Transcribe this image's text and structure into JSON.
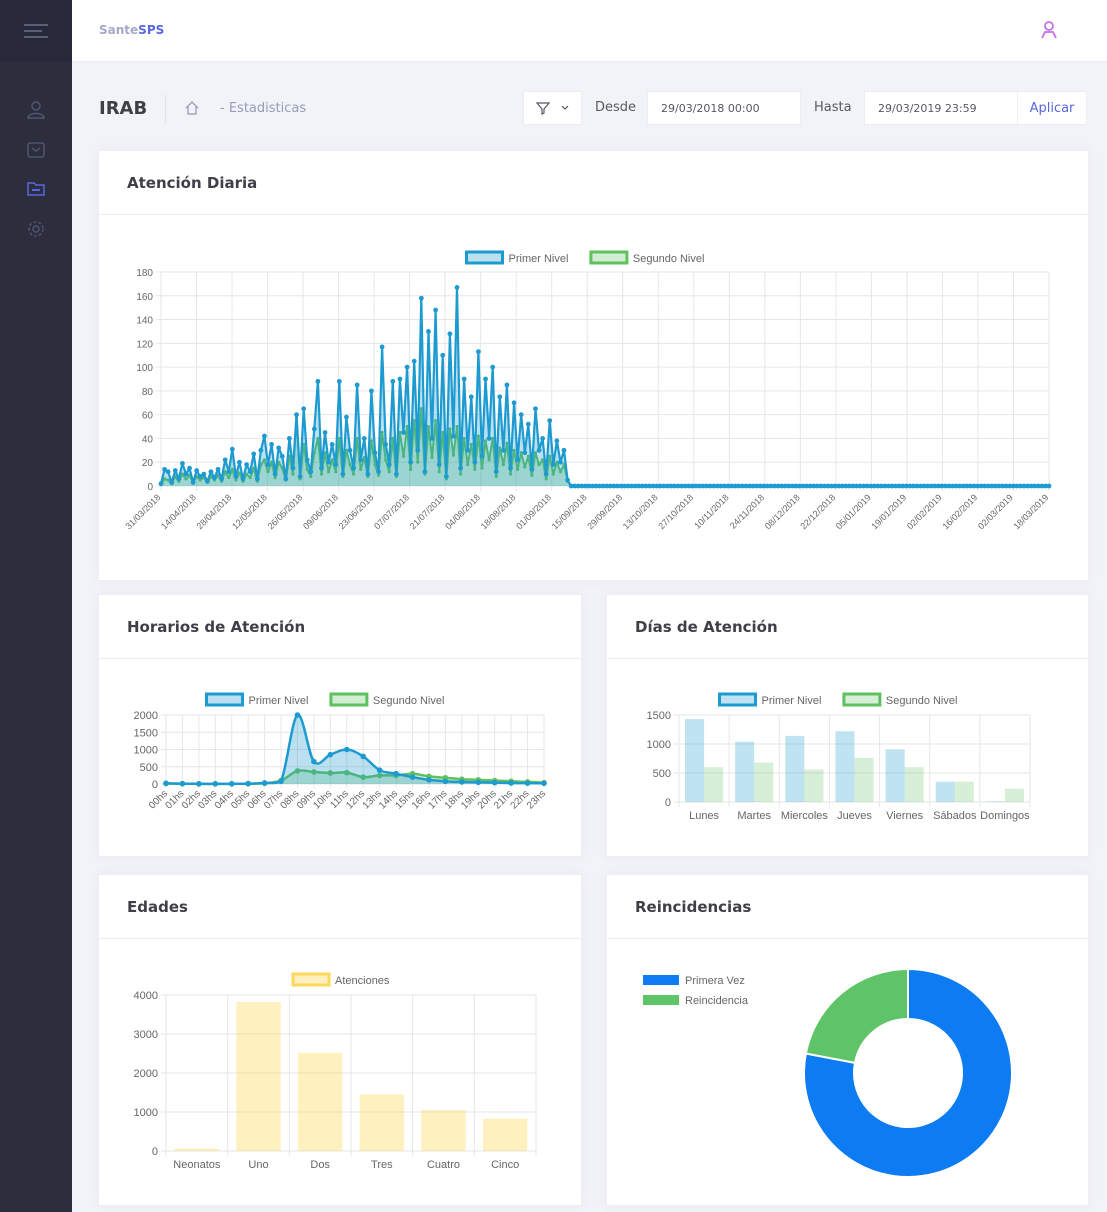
{
  "brand": {
    "part1": "Sante",
    "part2": "SPS"
  },
  "sidebar": {
    "items": [
      {
        "icon": "users-icon"
      },
      {
        "icon": "inbox-icon"
      },
      {
        "icon": "folder-icon"
      },
      {
        "icon": "gear-icon"
      }
    ]
  },
  "subheader": {
    "title": "IRAB",
    "breadcrumb_separator": "-",
    "breadcrumb": "Estadisticas",
    "desde_label": "Desde",
    "desde_value": "29/03/2018 00:00",
    "hasta_label": "Hasta",
    "hasta_value": "29/03/2019 23:59",
    "apply_label": "Aplicar"
  },
  "colors": {
    "primer": "#1d9bd1",
    "primer_fill": "rgba(29,155,209,0.30)",
    "segundo": "#5fc05f",
    "segundo_fill": "rgba(95,192,95,0.28)",
    "atenciones": "#ffd75a",
    "donut_blue": "#0d7cf2",
    "donut_green": "#5fc467"
  },
  "cards": {
    "diaria": "Atención Diaria",
    "horarios": "Horarios de Atención",
    "dias": "Días de Atención",
    "edades": "Edades",
    "reincidencias": "Reincidencias"
  },
  "chart_data": [
    {
      "id": "diaria",
      "type": "line",
      "title": "Atención Diaria",
      "ylim": [
        0,
        180
      ],
      "yticks": [
        0,
        20,
        40,
        60,
        80,
        100,
        120,
        140,
        160,
        180
      ],
      "x_tick_labels": [
        "31/03/2018",
        "14/04/2018",
        "28/04/2018",
        "12/05/2018",
        "26/05/2018",
        "09/06/2018",
        "23/06/2018",
        "07/07/2018",
        "21/07/2018",
        "04/08/2018",
        "18/08/2018",
        "01/09/2018",
        "15/09/2018",
        "29/09/2018",
        "13/10/2018",
        "27/10/2018",
        "10/11/2018",
        "24/11/2018",
        "08/12/2018",
        "22/12/2018",
        "05/01/2019",
        "19/01/2019",
        "02/02/2019",
        "16/02/2019",
        "02/03/2019",
        "18/03/2019"
      ],
      "legend": "top",
      "series": [
        {
          "name": "Primer Nivel",
          "values": [
            2,
            14,
            12,
            3,
            13,
            6,
            19,
            10,
            15,
            3,
            13,
            8,
            10,
            4,
            12,
            7,
            14,
            6,
            22,
            12,
            31,
            8,
            20,
            6,
            18,
            12,
            27,
            6,
            30,
            42,
            18,
            35,
            10,
            32,
            25,
            6,
            40,
            15,
            60,
            8,
            65,
            22,
            12,
            48,
            88,
            15,
            45,
            20,
            35,
            18,
            88,
            10,
            58,
            30,
            15,
            85,
            22,
            40,
            10,
            80,
            28,
            12,
            117,
            35,
            18,
            88,
            10,
            90,
            45,
            100,
            20,
            105,
            30,
            158,
            12,
            130,
            40,
            148,
            18,
            110,
            8,
            128,
            42,
            167,
            15,
            90,
            30,
            75,
            20,
            113,
            25,
            90,
            40,
            100,
            12,
            75,
            30,
            85,
            15,
            70,
            22,
            60,
            28,
            52,
            14,
            65,
            30,
            40,
            10,
            55,
            18,
            38,
            20,
            30,
            5,
            0,
            0,
            0,
            0,
            0,
            0,
            0,
            0,
            0,
            0,
            0,
            0,
            0,
            0,
            0,
            0,
            0,
            0,
            0,
            0,
            0,
            0,
            0,
            0,
            0,
            0,
            0,
            0,
            0,
            0,
            0,
            0,
            0,
            0,
            0,
            0,
            0,
            0,
            0,
            0,
            0,
            0,
            0,
            0,
            0,
            0,
            0,
            0,
            0,
            0,
            0,
            0,
            0,
            0,
            0,
            0,
            0,
            0,
            0,
            0,
            0,
            0,
            0,
            0,
            0,
            0,
            0,
            0,
            0,
            0,
            0,
            0,
            0,
            0,
            0,
            0,
            0,
            0,
            0,
            0,
            0,
            0,
            0,
            0,
            0,
            0,
            0,
            0,
            0,
            0,
            0,
            0,
            0,
            0,
            0,
            0,
            0,
            0,
            0,
            0,
            0,
            0,
            0,
            0,
            0,
            0,
            0,
            0,
            0,
            0,
            0,
            0,
            0,
            0,
            0,
            0,
            0,
            0,
            0,
            0,
            0,
            0,
            0,
            0,
            0,
            0,
            0,
            0,
            0,
            0,
            0,
            0,
            0,
            0,
            0
          ]
        },
        {
          "name": "Segundo Nivel",
          "values": [
            1,
            6,
            5,
            2,
            8,
            4,
            10,
            6,
            9,
            3,
            8,
            5,
            7,
            3,
            8,
            5,
            9,
            4,
            12,
            7,
            14,
            5,
            11,
            4,
            10,
            7,
            15,
            4,
            18,
            22,
            12,
            20,
            7,
            20,
            15,
            5,
            25,
            10,
            58,
            6,
            35,
            14,
            8,
            28,
            40,
            10,
            28,
            12,
            22,
            12,
            40,
            8,
            30,
            18,
            10,
            40,
            14,
            24,
            8,
            38,
            18,
            9,
            45,
            22,
            12,
            40,
            8,
            45,
            25,
            50,
            14,
            55,
            20,
            65,
            10,
            50,
            24,
            55,
            12,
            45,
            6,
            48,
            26,
            50,
            10,
            40,
            18,
            35,
            14,
            42,
            15,
            38,
            22,
            40,
            8,
            32,
            18,
            36,
            10,
            30,
            14,
            28,
            16,
            25,
            9,
            28,
            18,
            22,
            6,
            25,
            10,
            20,
            12,
            18,
            4,
            0,
            0,
            0,
            0,
            0,
            0,
            0,
            0,
            0,
            0,
            0,
            0,
            0,
            0,
            0,
            0,
            0,
            0,
            0,
            0,
            0,
            0,
            0,
            0,
            0,
            0,
            0,
            0,
            0,
            0,
            0,
            0,
            0,
            0,
            0,
            0,
            0,
            0,
            0,
            0,
            0,
            0,
            0,
            0,
            0,
            0,
            0,
            0,
            0,
            0,
            0,
            0,
            0,
            0,
            0,
            0,
            0,
            0,
            0,
            0,
            0,
            0,
            0,
            0,
            0,
            0,
            0,
            0,
            0,
            0,
            0,
            0,
            0,
            0,
            0,
            0,
            0,
            0,
            0,
            0,
            0,
            0,
            0,
            0,
            0,
            0,
            0,
            0,
            0,
            0,
            0,
            0,
            0,
            0,
            0,
            0,
            0,
            0,
            0,
            0,
            0,
            0,
            0,
            0,
            0,
            0,
            0,
            0,
            0,
            0,
            0,
            0,
            0,
            0,
            0,
            0,
            0,
            0,
            0,
            0,
            0,
            0,
            0,
            0,
            0,
            0,
            0,
            0,
            0,
            0,
            0,
            0,
            0,
            0,
            0
          ]
        }
      ]
    },
    {
      "id": "horarios",
      "type": "line",
      "title": "Horarios de Atención",
      "ylim": [
        0,
        2000
      ],
      "yticks": [
        0,
        500,
        1000,
        1500,
        2000
      ],
      "categories": [
        "00hs",
        "01hs",
        "02hs",
        "03hs",
        "04hs",
        "05hs",
        "06hs",
        "07hs",
        "08hs",
        "09hs",
        "10hs",
        "11hs",
        "12hs",
        "13hs",
        "14hs",
        "15hs",
        "16hs",
        "17hs",
        "18hs",
        "19hs",
        "20hs",
        "21hs",
        "22hs",
        "23hs"
      ],
      "legend": "top",
      "series": [
        {
          "name": "Primer Nivel",
          "values": [
            20,
            10,
            5,
            5,
            5,
            10,
            30,
            80,
            2000,
            650,
            850,
            1000,
            800,
            400,
            300,
            200,
            120,
            80,
            60,
            50,
            40,
            30,
            25,
            20
          ]
        },
        {
          "name": "Segundo Nivel",
          "values": [
            15,
            10,
            5,
            5,
            5,
            10,
            20,
            100,
            380,
            350,
            320,
            330,
            200,
            250,
            250,
            300,
            220,
            180,
            140,
            120,
            100,
            80,
            60,
            40
          ]
        }
      ]
    },
    {
      "id": "dias",
      "type": "bar",
      "title": "Días de Atención",
      "ylim": [
        0,
        1500
      ],
      "yticks": [
        0,
        500,
        1000,
        1500
      ],
      "categories": [
        "Lunes",
        "Martes",
        "Miercoles",
        "Jueves",
        "Viernes",
        "Sábados",
        "Domingos"
      ],
      "legend": "top",
      "series": [
        {
          "name": "Primer Nivel",
          "values": [
            1430,
            1040,
            1140,
            1220,
            910,
            350,
            10
          ]
        },
        {
          "name": "Segundo Nivel",
          "values": [
            600,
            680,
            560,
            760,
            600,
            350,
            230
          ]
        }
      ]
    },
    {
      "id": "edades",
      "type": "bar",
      "title": "Edades",
      "ylim": [
        0,
        4000
      ],
      "yticks": [
        0,
        1000,
        2000,
        3000,
        4000
      ],
      "categories": [
        "Neonatos",
        "Uno",
        "Dos",
        "Tres",
        "Cuatro",
        "Cinco"
      ],
      "legend": "top",
      "series": [
        {
          "name": "Atenciones",
          "values": [
            60,
            3820,
            2520,
            1450,
            1050,
            830
          ]
        }
      ]
    },
    {
      "id": "reincidencias",
      "type": "pie",
      "title": "Reincidencias",
      "legend": "left",
      "labels": [
        "Primera Vez",
        "Reincidencia"
      ],
      "values": [
        78,
        22
      ]
    }
  ]
}
